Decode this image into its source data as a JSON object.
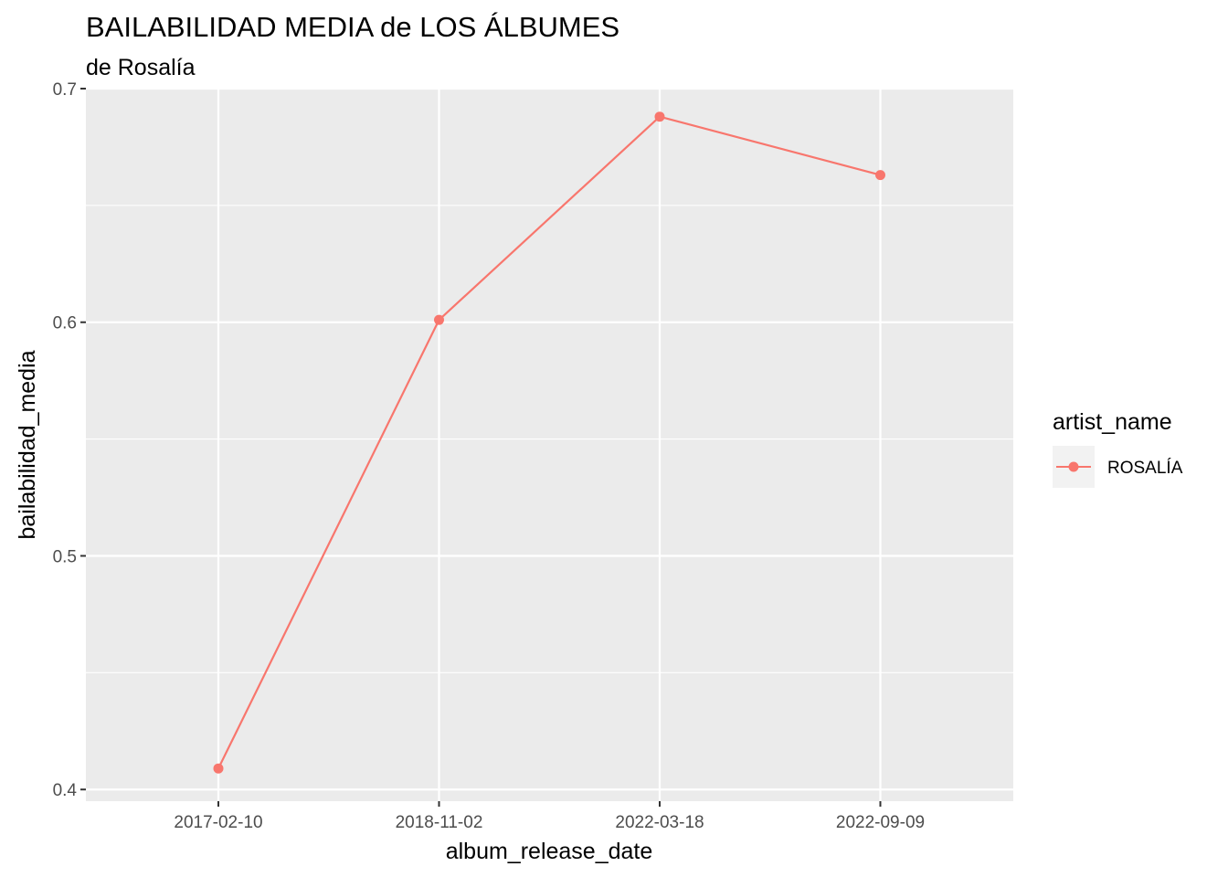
{
  "chart_data": {
    "type": "line",
    "title": "BAILABILIDAD MEDIA de LOS ÁLBUMES",
    "subtitle": "de Rosalía",
    "xlabel": "album_release_date",
    "ylabel": "bailabilidad_media",
    "categories": [
      "2017-02-10",
      "2018-11-02",
      "2022-03-18",
      "2022-09-09"
    ],
    "ylim": [
      0.395,
      0.7
    ],
    "yticks": [
      0.4,
      0.5,
      0.6,
      0.7
    ],
    "ytick_labels": [
      "0.4",
      "0.5",
      "0.6",
      "0.7"
    ],
    "series": [
      {
        "name": "ROSALÍA",
        "values": [
          0.409,
          0.601,
          0.688,
          0.663
        ],
        "color": "#F8766D"
      }
    ],
    "legend": {
      "title": "artist_name",
      "position": "right"
    },
    "grid": true,
    "panel_background": "#EBEBEB"
  }
}
